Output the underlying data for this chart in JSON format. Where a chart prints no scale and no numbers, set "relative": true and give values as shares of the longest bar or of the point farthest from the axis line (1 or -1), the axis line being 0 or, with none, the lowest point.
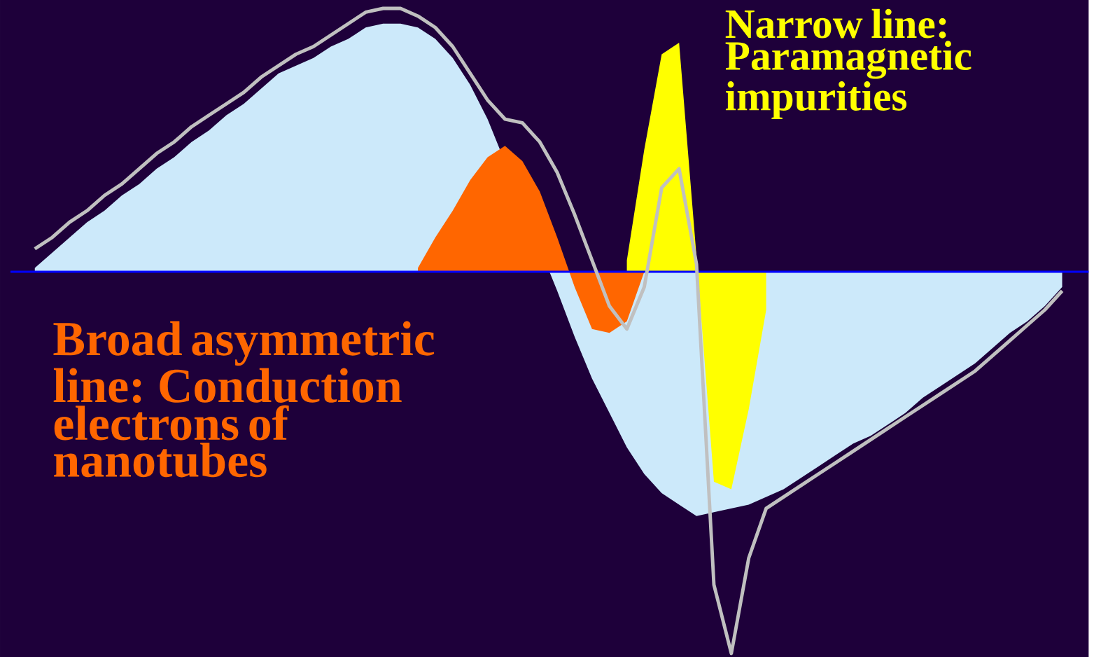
{
  "chart_data": {
    "type": "area",
    "relative": true,
    "categories": [
      null,
      null,
      null,
      null,
      null,
      null,
      null,
      null,
      null,
      null,
      null,
      null,
      null,
      null,
      null,
      null,
      null,
      null,
      null,
      null,
      null,
      null,
      null,
      null,
      null,
      null,
      null,
      null,
      null,
      null,
      null,
      null,
      null,
      null,
      null,
      null,
      null,
      null,
      null,
      null,
      null,
      null,
      null,
      null,
      null,
      null,
      null,
      null,
      null,
      null,
      null,
      null,
      null,
      null,
      null,
      null,
      null,
      null,
      null,
      null,
      null,
      null
    ],
    "series": [
      {
        "color": "#cce9fa",
        "values": [
          null,
          0.01,
          0.05,
          0.09,
          0.13,
          0.16,
          0.2,
          0.23,
          0.27,
          0.3,
          0.34,
          0.37,
          0.41,
          0.44,
          0.48,
          0.52,
          0.54,
          0.56,
          0.59,
          0.61,
          0.64,
          0.65,
          0.65,
          0.64,
          0.61,
          0.56,
          0.49,
          0.4,
          null,
          null,
          null,
          -0.05,
          -0.17,
          -0.28,
          -0.37,
          -0.46,
          -0.53,
          -0.58,
          -0.61,
          -0.64,
          -0.63,
          -0.62,
          -0.61,
          -0.59,
          -0.57,
          -0.54,
          -0.51,
          -0.48,
          -0.45,
          -0.43,
          -0.4,
          -0.37,
          -0.33,
          -0.3,
          -0.27,
          -0.24,
          -0.2,
          -0.16,
          -0.13,
          -0.09,
          -0.04,
          null
        ]
      },
      {
        "color": "#ff6600",
        "values": [
          null,
          null,
          null,
          null,
          null,
          null,
          null,
          null,
          null,
          null,
          null,
          null,
          null,
          null,
          null,
          null,
          null,
          null,
          null,
          null,
          null,
          null,
          null,
          0.01,
          0.09,
          0.16,
          0.24,
          0.3,
          0.33,
          0.29,
          0.21,
          0.09,
          -0.04,
          -0.15,
          -0.16,
          -0.13,
          0.0,
          null,
          null,
          null,
          null,
          null,
          null,
          null,
          null,
          null,
          null,
          null,
          null,
          null,
          null,
          null,
          null,
          null,
          null,
          null,
          null,
          null,
          null,
          null,
          null,
          null
        ]
      },
      {
        "color": "#ffff00",
        "values": [
          null,
          null,
          null,
          null,
          null,
          null,
          null,
          null,
          null,
          null,
          null,
          null,
          null,
          null,
          null,
          null,
          null,
          null,
          null,
          null,
          null,
          null,
          null,
          null,
          null,
          null,
          null,
          null,
          null,
          null,
          null,
          null,
          null,
          null,
          null,
          0.03,
          0.32,
          0.57,
          0.6,
          0.04,
          -0.55,
          -0.57,
          -0.36,
          -0.1,
          null,
          null,
          null,
          null,
          null,
          null,
          null,
          null,
          null,
          null,
          null,
          null,
          null,
          null,
          null,
          null,
          null,
          null
        ]
      },
      {
        "type": "line",
        "color": "#c0c0c0",
        "values": [
          null,
          0.06,
          0.09,
          0.13,
          0.16,
          0.2,
          0.23,
          0.27,
          0.31,
          0.34,
          0.38,
          0.41,
          0.44,
          0.47,
          0.51,
          0.54,
          0.57,
          0.59,
          0.62,
          0.65,
          0.68,
          0.69,
          0.69,
          0.67,
          0.64,
          0.59,
          0.52,
          0.45,
          0.4,
          0.39,
          0.34,
          0.26,
          0.15,
          0.03,
          -0.09,
          -0.15,
          -0.04,
          0.22,
          0.27,
          0.02,
          -0.82,
          -1,
          -0.75,
          -0.62,
          -0.59,
          -0.56,
          -0.53,
          -0.5,
          -0.47,
          -0.44,
          -0.41,
          -0.38,
          -0.35,
          -0.32,
          -0.29,
          -0.26,
          -0.22,
          -0.18,
          -0.14,
          -0.1,
          -0.05,
          null
        ]
      }
    ],
    "ref_lines": [
      {
        "axis": "y",
        "value": 0,
        "color": "#0000ff"
      }
    ],
    "annotations": [
      "Narrow line: Paramagnetic impurities",
      "Broad asymmetric line: Conduction electrons of nanotubes"
    ]
  }
}
